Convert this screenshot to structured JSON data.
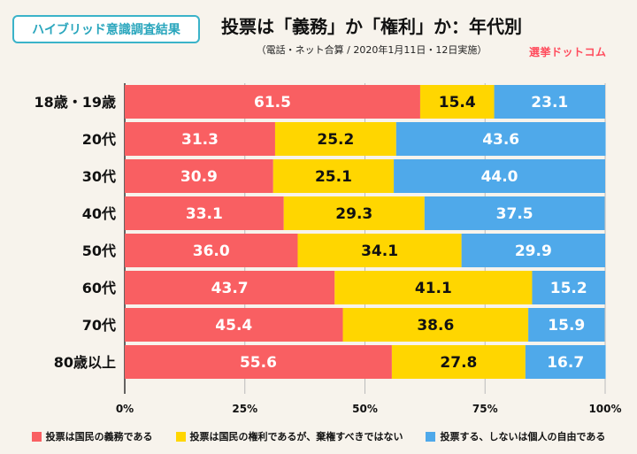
{
  "badge": "ハイブリッド意識調査結果",
  "title": "投票は「義務」か「権利」か：年代別",
  "subtitle": "（電話・ネット合算 / 2020年1月11日・12日実施）",
  "logo": "選挙ドットコム",
  "colors": {
    "duty": "#f95f62",
    "right": "#ffd600",
    "free": "#4fa9ea",
    "text_on_bar_light": "#ffffff",
    "text_on_bar_dark": "#111111"
  },
  "chart_data": {
    "type": "bar",
    "orientation": "horizontal",
    "stacked": true,
    "percent": true,
    "categories": [
      "18歳・19歳",
      "20代",
      "30代",
      "40代",
      "50代",
      "60代",
      "70代",
      "80歳以上"
    ],
    "series": [
      {
        "name": "投票は国民の義務である",
        "values": [
          61.5,
          31.3,
          30.9,
          33.1,
          36.0,
          43.7,
          45.4,
          55.6
        ]
      },
      {
        "name": "投票は国民の権利であるが、棄権すべきではない",
        "values": [
          15.4,
          25.2,
          25.1,
          29.3,
          34.1,
          41.1,
          38.6,
          27.8
        ]
      },
      {
        "name": "投票する、しないは個人の自由である",
        "values": [
          23.1,
          43.6,
          44.0,
          37.5,
          29.9,
          15.2,
          15.9,
          16.7
        ]
      }
    ],
    "value_labels": [
      [
        "61.5",
        "15.4",
        "23.1"
      ],
      [
        "31.3",
        "25.2",
        "43.6"
      ],
      [
        "30.9",
        "25.1",
        "44.0"
      ],
      [
        "33.1",
        "29.3",
        "37.5"
      ],
      [
        "36.0",
        "34.1",
        "29.9"
      ],
      [
        "43.7",
        "41.1",
        "15.2"
      ],
      [
        "45.4",
        "38.6",
        "15.9"
      ],
      [
        "55.6",
        "27.8",
        "16.7"
      ]
    ],
    "xlim": [
      0,
      100
    ],
    "x_ticks": [
      "0%",
      "25%",
      "50%",
      "75%",
      "100%"
    ],
    "grid": true,
    "legend_position": "bottom"
  }
}
